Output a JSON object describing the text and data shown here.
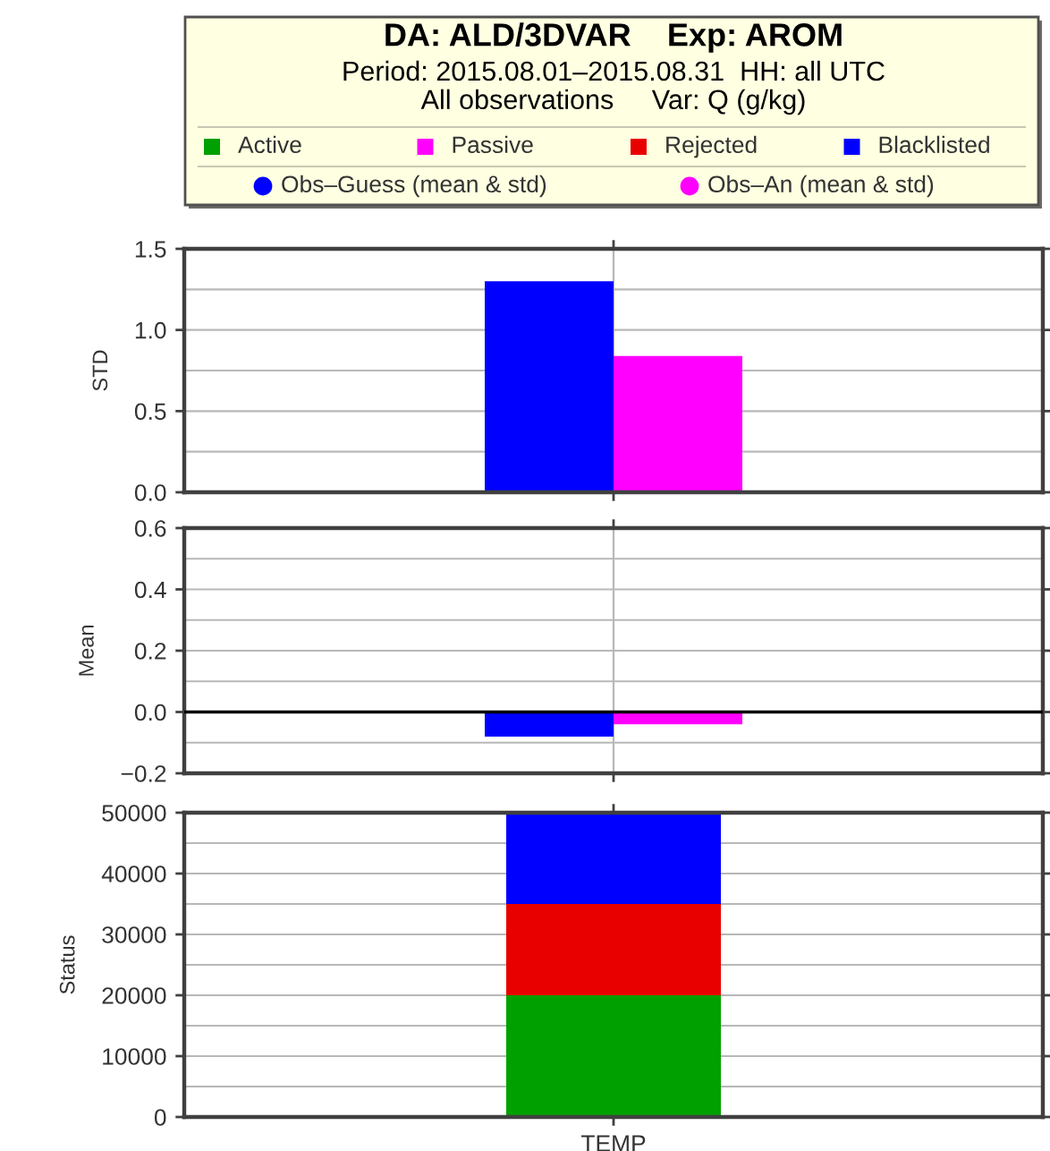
{
  "chart_data": [
    {
      "type": "bar",
      "title": "DA: ALD/3DVAR    Exp: AROM",
      "subtitle": "Period: 2015.08.01–2015.08.31  HH: all UTC\nAll observations     Var: Q (g/kg)",
      "ylabel": "STD",
      "categories": [
        null
      ],
      "series": [
        {
          "name": "Obs–Guess (mean & std)",
          "color": "#0000ff",
          "values": [
            1.3
          ]
        },
        {
          "name": "Obs–An (mean & std)",
          "color": "#ff00ff",
          "values": [
            0.84
          ]
        }
      ],
      "ylim": [
        0,
        1.5
      ],
      "yticks": [
        {
          "value": 0,
          "label": "0.0"
        },
        0.5,
        {
          "value": 1,
          "label": "1.0"
        },
        1.5
      ],
      "grid": true,
      "legend": "top",
      "tick_labels": "y"
    },
    {
      "type": "bar",
      "ylabel": "Mean",
      "categories": [
        null
      ],
      "series": [
        {
          "color": "#0000ff",
          "values": [
            -0.08
          ]
        },
        {
          "color": "#ff00ff",
          "values": [
            -0.04
          ]
        }
      ],
      "ylim": [
        -0.2,
        0.6
      ],
      "yticks": [
        {
          "value": -0.2,
          "label": "−0.2"
        },
        {
          "value": 0,
          "label": "0.0"
        },
        0.2,
        0.4,
        0.6
      ],
      "ref_lines": [
        {
          "axis": "y",
          "value": 0,
          "color": "#000000"
        }
      ],
      "grid": true,
      "tick_labels": "y"
    },
    {
      "type": "bar",
      "stacked": true,
      "ylabel": "Status",
      "categories": [
        "TEMP"
      ],
      "series": [
        {
          "name": "Active",
          "color": "#00a000",
          "values": [
            20000
          ]
        },
        {
          "name": "Passive",
          "color": "#ff00ff",
          "values": [
            0
          ]
        },
        {
          "name": "Rejected",
          "color": "#e80000",
          "values": [
            15000
          ]
        },
        {
          "name": "Blacklisted",
          "color": "#0000ff",
          "values": [
            15000
          ]
        }
      ],
      "ylim": [
        0,
        50000
      ],
      "yticks": [
        0,
        10000,
        20000,
        30000,
        40000,
        50000
      ],
      "grid": true,
      "legend": "top"
    }
  ]
}
